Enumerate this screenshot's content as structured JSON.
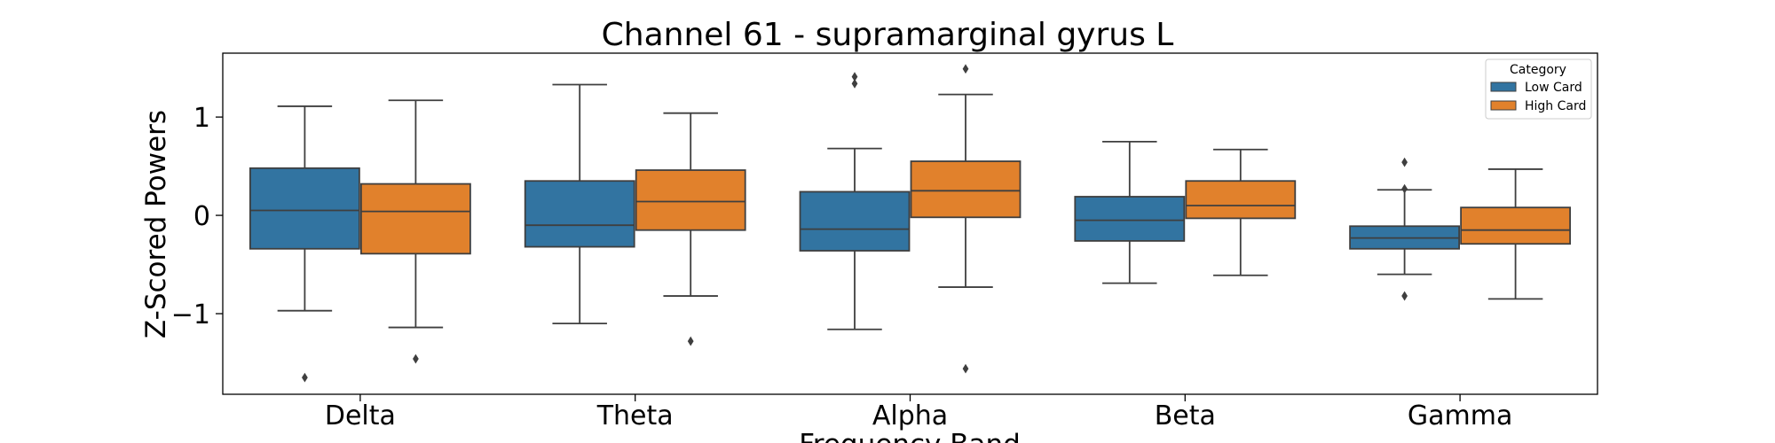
{
  "chart_data": {
    "type": "box",
    "title": "Channel 61 - supramarginal gyrus L",
    "xlabel": "Frequency Band",
    "ylabel": "Z-Scored Powers",
    "categories": [
      "Delta",
      "Theta",
      "Alpha",
      "Beta",
      "Gamma"
    ],
    "ylim": [
      -1.82,
      1.65
    ],
    "yticks": [
      -1,
      0,
      1
    ],
    "ytick_labels": [
      "−1",
      "0",
      "1"
    ],
    "legend": {
      "title": "Category",
      "position": "top-right"
    },
    "series": [
      {
        "name": "Low Card",
        "color": "#3274a1",
        "boxes": [
          {
            "whisker_low": -0.97,
            "q1": -0.34,
            "median": 0.05,
            "q3": 0.48,
            "whisker_high": 1.11,
            "outliers": [
              -1.65
            ]
          },
          {
            "whisker_low": -1.1,
            "q1": -0.32,
            "median": -0.1,
            "q3": 0.35,
            "whisker_high": 1.33,
            "outliers": []
          },
          {
            "whisker_low": -1.16,
            "q1": -0.36,
            "median": -0.14,
            "q3": 0.24,
            "whisker_high": 0.68,
            "outliers": [
              1.34,
              1.41
            ]
          },
          {
            "whisker_low": -0.69,
            "q1": -0.26,
            "median": -0.05,
            "q3": 0.19,
            "whisker_high": 0.75,
            "outliers": []
          },
          {
            "whisker_low": -0.6,
            "q1": -0.34,
            "median": -0.23,
            "q3": -0.11,
            "whisker_high": 0.26,
            "outliers": [
              0.54,
              0.27,
              -0.82
            ]
          }
        ]
      },
      {
        "name": "High Card",
        "color": "#e1812c",
        "boxes": [
          {
            "whisker_low": -1.14,
            "q1": -0.39,
            "median": 0.04,
            "q3": 0.32,
            "whisker_high": 1.17,
            "outliers": [
              -1.46
            ]
          },
          {
            "whisker_low": -0.82,
            "q1": -0.15,
            "median": 0.14,
            "q3": 0.46,
            "whisker_high": 1.04,
            "outliers": [
              -1.28
            ]
          },
          {
            "whisker_low": -0.73,
            "q1": -0.02,
            "median": 0.25,
            "q3": 0.55,
            "whisker_high": 1.23,
            "outliers": [
              1.49,
              -1.56
            ]
          },
          {
            "whisker_low": -0.61,
            "q1": -0.03,
            "median": 0.1,
            "q3": 0.35,
            "whisker_high": 0.67,
            "outliers": []
          },
          {
            "whisker_low": -0.85,
            "q1": -0.29,
            "median": -0.15,
            "q3": 0.08,
            "whisker_high": 0.47,
            "outliers": []
          }
        ]
      }
    ]
  }
}
